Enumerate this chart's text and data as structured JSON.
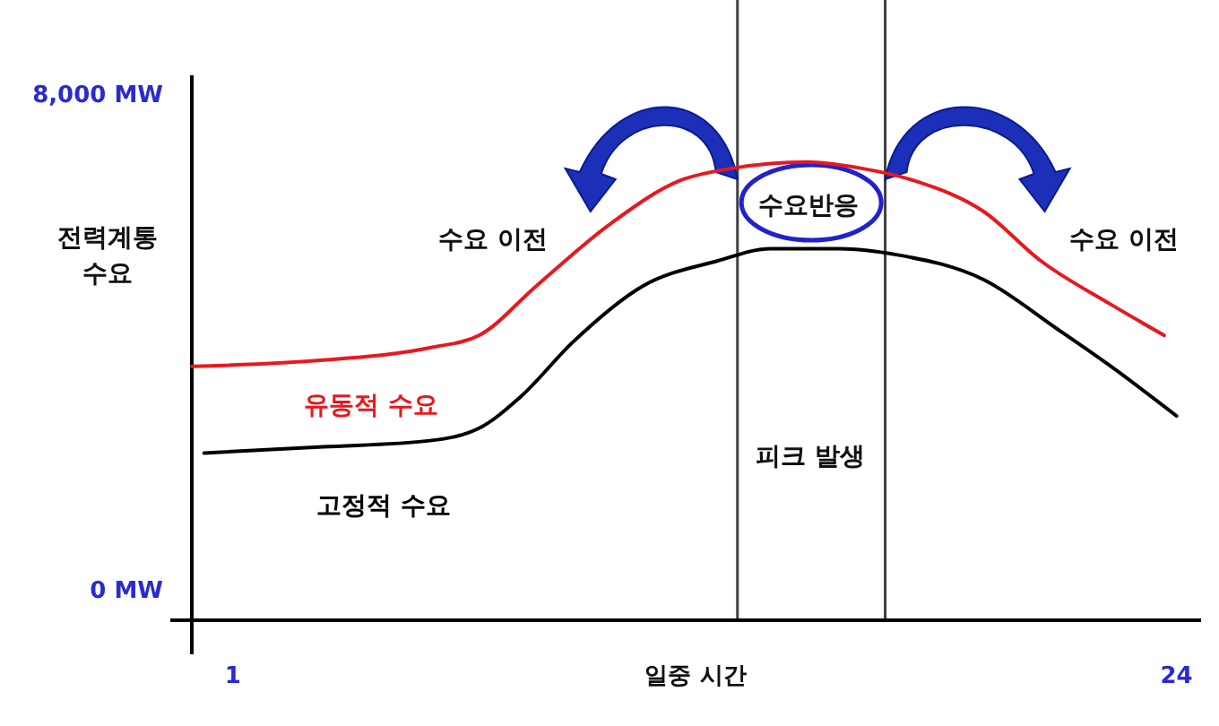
{
  "chart_data": {
    "type": "line",
    "xlabel": "일중 시간",
    "ylabel": "전력계통 수요",
    "xlim": [
      0,
      24.6
    ],
    "ylim": [
      -500,
      8300
    ],
    "xticks": [
      1,
      24
    ],
    "yticks": [
      {
        "value": 0,
        "label": "0 MW"
      },
      {
        "value": 8000,
        "label": "8,000 MW"
      }
    ],
    "legend": false,
    "marker": "none",
    "line_style": "solid",
    "series": [
      {
        "name": "유동적 수요",
        "color": "#e8181e",
        "x": [
          0,
          3.2,
          5.8,
          7,
          8.4,
          10.2,
          11.9,
          13.2,
          15,
          16.3,
          17.6,
          19.3,
          20.7,
          22.4,
          23.7
        ],
        "values": [
          3600,
          3700,
          3900,
          4100,
          4900,
          5900,
          6600,
          6800,
          6900,
          6800,
          6600,
          6100,
          5300,
          4600,
          4100
        ]
      },
      {
        "name": "고정적 수요",
        "color": "#000000",
        "x": [
          0.3,
          3.2,
          5.8,
          7,
          8,
          9.3,
          11,
          12.8,
          14.1,
          15.8,
          17.2,
          19.3,
          21.1,
          22.4,
          24
        ],
        "values": [
          2200,
          2300,
          2400,
          2600,
          3100,
          4000,
          4900,
          5300,
          5500,
          5500,
          5400,
          5000,
          4200,
          3600,
          2800
        ]
      }
    ],
    "ref_lines": [
      {
        "axis": "x",
        "value": 13.3,
        "color": "#404040"
      },
      {
        "axis": "x",
        "value": 16.9,
        "color": "#404040"
      }
    ],
    "annotations": [
      "수요 이전",
      "수요반응",
      "수요 이전",
      "피크 발생"
    ]
  }
}
